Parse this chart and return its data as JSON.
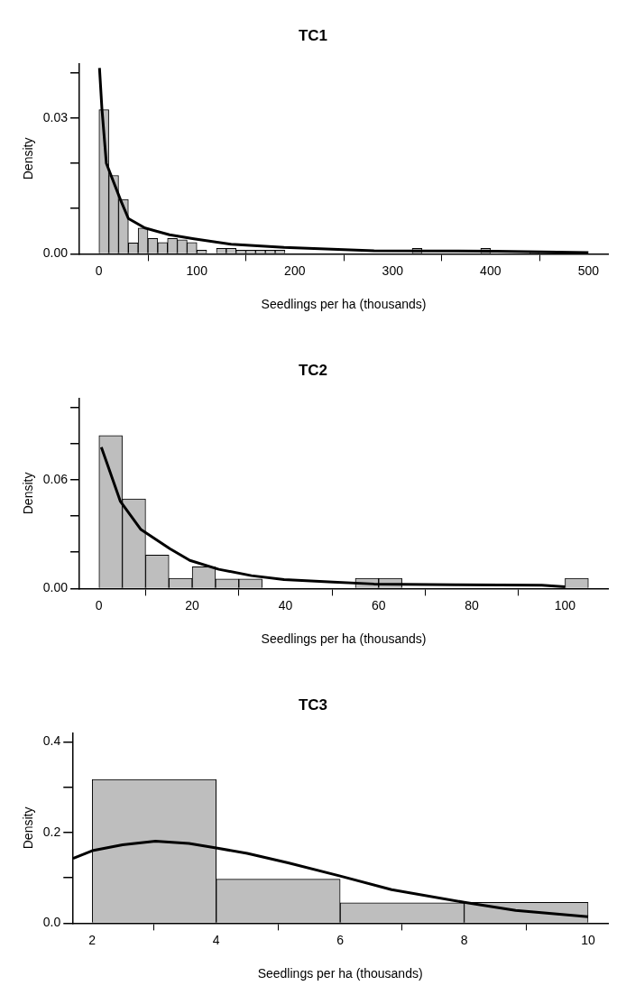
{
  "chart_data": [
    {
      "type": "histogram",
      "title": "TC1",
      "xlabel": "Seedlings per ha (thousands)",
      "ylabel": "Density",
      "color": "#bebebe",
      "bins": [
        0,
        10,
        20,
        30,
        40,
        50,
        60,
        70,
        80,
        90,
        100,
        110,
        120,
        130,
        140,
        150,
        160,
        170,
        180,
        190,
        200,
        210,
        220,
        230,
        240,
        250,
        260,
        270,
        280,
        290,
        300,
        310,
        320,
        330,
        340,
        350,
        360,
        370,
        380,
        390,
        400,
        410,
        420,
        430,
        440,
        450,
        460,
        470,
        480,
        490,
        500
      ],
      "values": [
        0.0318,
        0.0173,
        0.012,
        0.0024,
        0.0057,
        0.0034,
        0.0025,
        0.0034,
        0.0031,
        0.0025,
        0.0008,
        null,
        0.0012,
        0.0012,
        0.0008,
        0.0008,
        0.0008,
        0.0008,
        0.0008,
        0,
        0,
        0,
        0,
        0,
        0,
        0,
        0,
        0,
        0,
        0,
        0,
        0,
        0.0012,
        0,
        0,
        0,
        0,
        0,
        0,
        0.0012,
        0,
        0,
        0,
        0,
        0.0004,
        0,
        0,
        0,
        0,
        0
      ],
      "series": [
        {
          "type": "line",
          "color": "#000000",
          "x": [
            0.5,
            3,
            7.5,
            22,
            30,
            47,
            72,
            97,
            135,
            189,
            281,
            406,
            500
          ],
          "values": [
            0.041,
            0.032,
            0.02,
            0.0119,
            0.0078,
            0.0057,
            0.0042,
            0.0033,
            0.0021,
            0.0014,
            0.0007,
            0.0006,
            0.0003
          ]
        }
      ],
      "xlim": [
        -20,
        520
      ],
      "ylim": [
        0,
        0.042
      ],
      "xticks": [
        0,
        100,
        200,
        300,
        400,
        500
      ],
      "yticks": [
        {
          "value": 0,
          "label": "0.00"
        },
        {
          "value": 0.01,
          "label": null
        },
        {
          "value": 0.02,
          "label": null
        },
        {
          "value": 0.03,
          "label": "0.03"
        },
        {
          "value": 0.04,
          "label": null
        }
      ],
      "grid": false
    },
    {
      "type": "histogram",
      "title": "TC2",
      "xlabel": "Seedlings per ha (thousands)",
      "ylabel": "Density",
      "color": "#bebebe",
      "bins": [
        0,
        5,
        10,
        15,
        20,
        25,
        30,
        35,
        40,
        45,
        50,
        55,
        60,
        65,
        70,
        75,
        80,
        85,
        90,
        95,
        100,
        105
      ],
      "values": [
        0.0844,
        0.0494,
        0.0184,
        0.0056,
        0.012,
        0.0053,
        0.0053,
        0,
        0,
        0,
        0,
        0.0056,
        0.0056,
        0,
        0,
        0,
        0,
        0,
        0,
        0,
        0.0056
      ],
      "series": [
        {
          "type": "line",
          "color": "#000000",
          "x": [
            0.5,
            4.6,
            9,
            15.2,
            19.5,
            25.7,
            32.7,
            39.7,
            50.2,
            59,
            76.5,
            95,
            100
          ],
          "values": [
            0.078,
            0.048,
            0.0325,
            0.022,
            0.0155,
            0.0106,
            0.0071,
            0.0049,
            0.0035,
            0.0025,
            0.0021,
            0.0018,
            0.001
          ]
        }
      ],
      "xlim": [
        -4.2,
        109.2
      ],
      "ylim": [
        0,
        0.105
      ],
      "xticks": [
        0,
        20,
        40,
        60,
        80,
        100
      ],
      "yticks": [
        {
          "value": 0,
          "label": "0.00"
        },
        {
          "value": 0.02,
          "label": null
        },
        {
          "value": 0.04,
          "label": null
        },
        {
          "value": 0.06,
          "label": "0.06"
        },
        {
          "value": 0.08,
          "label": null
        },
        {
          "value": 0.1,
          "label": null
        }
      ],
      "grid": false
    },
    {
      "type": "histogram",
      "title": "TC3",
      "xlabel": "Seedlings per ha (thousands)",
      "ylabel": "Density",
      "color": "#bebebe",
      "bins": [
        2,
        4,
        6,
        8,
        10
      ],
      "values": [
        0.317,
        0.097,
        0.045,
        0.046
      ],
      "series": [
        {
          "type": "line",
          "color": "#000000",
          "x": [
            1.69,
            2,
            2.49,
            3.02,
            3.56,
            4,
            4.5,
            5.16,
            6,
            6.83,
            8,
            8.83,
            10
          ],
          "values": [
            0.143,
            0.16,
            0.173,
            0.181,
            0.176,
            0.166,
            0.154,
            0.133,
            0.104,
            0.074,
            0.046,
            0.028,
            0.014
          ]
        }
      ],
      "xlim": [
        1.68,
        10.32
      ],
      "ylim": [
        0,
        0.42
      ],
      "xticks": [
        2,
        4,
        6,
        8,
        10
      ],
      "yticks": [
        {
          "value": 0,
          "label": "0.0"
        },
        {
          "value": 0.1,
          "label": null
        },
        {
          "value": 0.2,
          "label": "0.2"
        },
        {
          "value": 0.3,
          "label": null
        },
        {
          "value": 0.4,
          "label": "0.4"
        }
      ],
      "grid": false
    }
  ]
}
